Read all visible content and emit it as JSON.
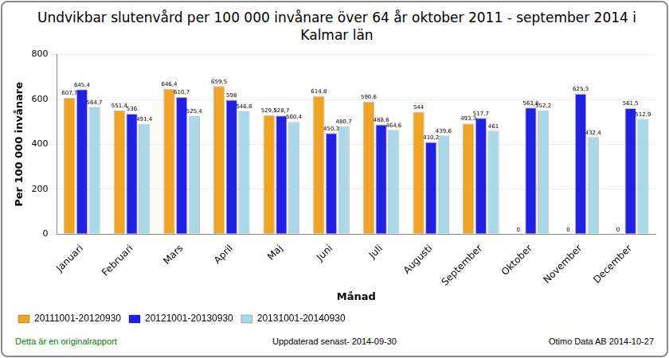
{
  "chart_data": {
    "type": "bar",
    "title": "Undvikbar slutenvård per 100 000 invånare över 64 år oktober 2011 - september 2014 i Kalmar län",
    "x_label": "Månad",
    "y_label": "Per 100 000 invånare",
    "categories": [
      "Januari",
      "Februari",
      "Mars",
      "April",
      "Maj",
      "Juni",
      "Juli",
      "Augusti",
      "September",
      "Oktober",
      "November",
      "December"
    ],
    "series": [
      {
        "name": "20111001-20120930",
        "color": "#f0a422",
        "values": [
          607.7,
          551.4,
          646.4,
          659.5,
          529.5,
          614.8,
          590.6,
          544,
          493.3,
          0,
          0,
          0
        ],
        "value_labels": [
          "607,7",
          "551,4",
          "646,4",
          "659,5",
          "529,5",
          "614,8",
          "590,6",
          "544",
          "493,3",
          "0",
          "0",
          "0"
        ]
      },
      {
        "name": "20121001-20130930",
        "color": "#2020e6",
        "values": [
          645.4,
          536,
          610.7,
          598,
          528.7,
          450.3,
          488.6,
          410.2,
          517.7,
          563.8,
          625.3,
          561.5
        ],
        "value_labels": [
          "645,4",
          "536",
          "610,7",
          "598",
          "528,7",
          "450,3",
          "488,6",
          "410,2",
          "517,7",
          "563,8",
          "625,3",
          "561,5"
        ]
      },
      {
        "name": "20131001-20140930",
        "color": "#a9d8e6",
        "values": [
          564.7,
          491.4,
          525.4,
          546.8,
          500.4,
          480.7,
          464.6,
          439.6,
          461,
          552.2,
          432.4,
          512.9
        ],
        "value_labels": [
          "564,7",
          "491,4",
          "525,4",
          "546,8",
          "500,4",
          "480,7",
          "464,6",
          "439,6",
          "461",
          "552,2",
          "432,4",
          "512,9"
        ]
      }
    ],
    "ylim": [
      0,
      800
    ],
    "yticks": [
      0,
      200,
      400,
      600,
      800
    ],
    "grid": true,
    "legend": "bottom-left",
    "data_labels": true
  },
  "footer": {
    "left": "Detta är en originalrapport",
    "center": "Uppdaterad senast- 2014-09-30",
    "right": "Otimo Data AB 2014-10-27"
  }
}
